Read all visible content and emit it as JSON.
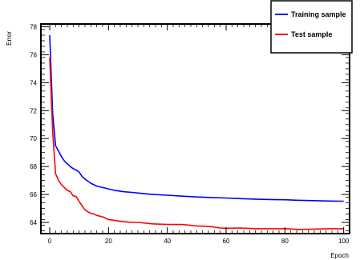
{
  "chart_data": {
    "type": "line",
    "title": "",
    "xlabel": "Epoch",
    "ylabel": "Error",
    "xlim": [
      -3,
      102
    ],
    "ylim": [
      63.2,
      78.2
    ],
    "x_ticks": [
      0,
      20,
      40,
      60,
      80,
      100
    ],
    "y_ticks": [
      64,
      66,
      68,
      70,
      72,
      74,
      76,
      78
    ],
    "grid": false,
    "legend_position": "top-right",
    "series": [
      {
        "name": "Training sample",
        "color": "#0000ff",
        "x": [
          0,
          1,
          2,
          3,
          4,
          5,
          6,
          7,
          8,
          9,
          10,
          11,
          12,
          13,
          14,
          15,
          16,
          18,
          20,
          22,
          25,
          28,
          30,
          35,
          40,
          45,
          50,
          55,
          60,
          65,
          70,
          75,
          80,
          85,
          90,
          95,
          100
        ],
        "values": [
          77.4,
          71.8,
          69.5,
          69.1,
          68.7,
          68.4,
          68.2,
          68.0,
          67.85,
          67.75,
          67.6,
          67.3,
          67.1,
          66.95,
          66.8,
          66.7,
          66.6,
          66.5,
          66.4,
          66.3,
          66.2,
          66.15,
          66.1,
          66.0,
          65.95,
          65.88,
          65.82,
          65.78,
          65.75,
          65.7,
          65.67,
          65.64,
          65.62,
          65.58,
          65.56,
          65.53,
          65.52
        ]
      },
      {
        "name": "Test sample",
        "color": "#ff0000",
        "x": [
          0,
          1,
          2,
          3,
          4,
          5,
          6,
          7,
          8,
          9,
          10,
          11,
          12,
          13,
          14,
          15,
          16,
          18,
          20,
          22,
          25,
          28,
          30,
          35,
          40,
          45,
          50,
          55,
          58,
          60,
          65,
          70,
          75,
          80,
          85,
          90,
          95,
          100
        ],
        "values": [
          75.8,
          70.5,
          67.5,
          67.0,
          66.7,
          66.5,
          66.3,
          66.2,
          65.9,
          65.85,
          65.5,
          65.2,
          64.9,
          64.75,
          64.65,
          64.6,
          64.5,
          64.4,
          64.2,
          64.15,
          64.05,
          64.0,
          64.0,
          63.9,
          63.85,
          63.85,
          63.75,
          63.7,
          63.6,
          63.58,
          63.6,
          63.55,
          63.55,
          63.55,
          63.5,
          63.52,
          63.55,
          63.55
        ]
      }
    ]
  }
}
